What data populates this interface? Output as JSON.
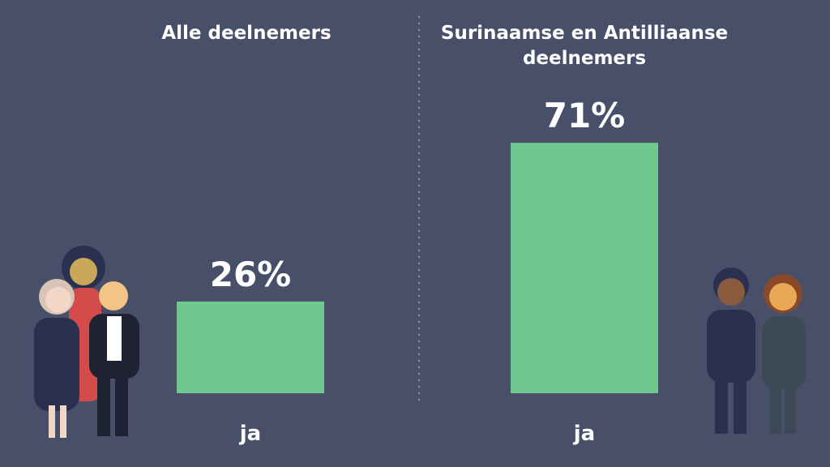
{
  "chart_data": [
    {
      "type": "bar",
      "title": "Alle deelnemers",
      "categories": [
        "ja"
      ],
      "values": [
        26
      ],
      "value_labels": [
        "26%"
      ],
      "color": "#6fc98f"
    },
    {
      "type": "bar",
      "title": "Surinaamse en Antilliaanse deelnemers",
      "categories": [
        "ja"
      ],
      "values": [
        71
      ],
      "value_labels": [
        "71%"
      ],
      "color": "#6fc98f"
    }
  ]
}
